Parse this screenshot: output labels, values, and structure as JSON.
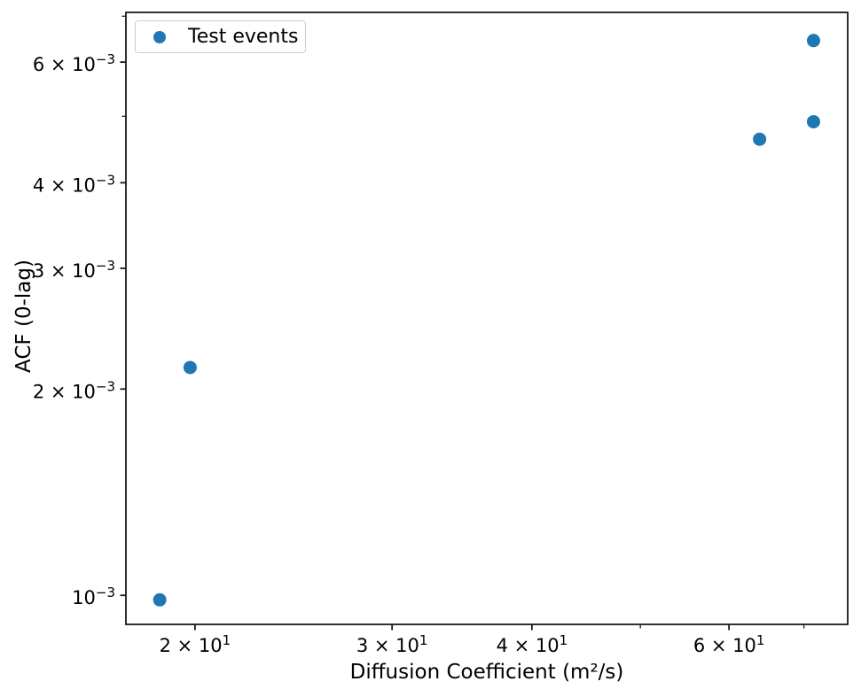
{
  "chart_data": {
    "type": "scatter",
    "title": "",
    "legend": {
      "label": "Test events",
      "position": "upper-left"
    },
    "x_axis": {
      "label": "Diffusion Coefficient (m²/s)",
      "scale": "log",
      "lim": [
        17.35,
        76.6
      ],
      "major_ticks": [
        {
          "value": 20,
          "mantissa": "2 × 10",
          "exponent": "1"
        },
        {
          "value": 30,
          "mantissa": "3 × 10",
          "exponent": "1"
        },
        {
          "value": 40,
          "mantissa": "4 × 10",
          "exponent": "1"
        },
        {
          "value": 60,
          "mantissa": "6 × 10",
          "exponent": "1"
        }
      ],
      "minor_ticks": [
        50,
        70
      ]
    },
    "y_axis": {
      "label": "ACF (0-lag)",
      "scale": "log",
      "lim": [
        0.000907,
        0.00709
      ],
      "major_ticks": [
        {
          "value": 0.006,
          "mantissa": "6 × 10",
          "exponent": "−3"
        },
        {
          "value": 0.004,
          "mantissa": "4 × 10",
          "exponent": "−3"
        },
        {
          "value": 0.003,
          "mantissa": "3 × 10",
          "exponent": "−3"
        },
        {
          "value": 0.002,
          "mantissa": "2 × 10",
          "exponent": "−3"
        },
        {
          "value": 0.001,
          "mantissa": "10",
          "exponent": "−3"
        }
      ],
      "minor_ticks": [
        0.007,
        0.005
      ]
    },
    "series": [
      {
        "name": "Test events",
        "marker": "circle",
        "color": "#1f77b4",
        "points": [
          {
            "x": 18.6,
            "y": 0.000985
          },
          {
            "x": 19.8,
            "y": 0.00215
          },
          {
            "x": 63.9,
            "y": 0.00463
          },
          {
            "x": 71.4,
            "y": 0.00491
          },
          {
            "x": 71.4,
            "y": 0.00645
          }
        ]
      }
    ],
    "grid": false,
    "colors": {
      "background": "#ffffff",
      "axis": "#1a1a1a",
      "text": "#000000",
      "legend_border": "#cccccc"
    }
  }
}
